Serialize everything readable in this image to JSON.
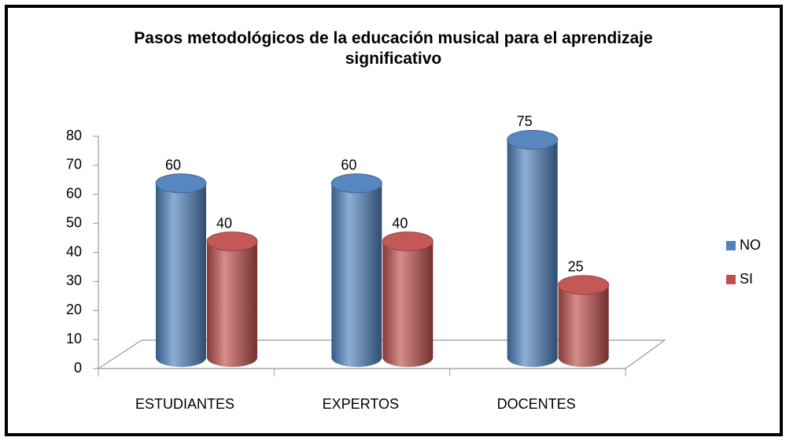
{
  "chart_data": {
    "type": "bar3d",
    "title": "Pasos metodológicos de la educación musical para el aprendizaje significativo",
    "categories": [
      "ESTUDIANTES",
      "EXPERTOS",
      "DOCENTES"
    ],
    "series": [
      {
        "name": "NO",
        "color": "#4f81bd",
        "values": [
          60,
          60,
          75
        ]
      },
      {
        "name": "SI",
        "color": "#c0504d",
        "values": [
          40,
          40,
          25
        ]
      }
    ],
    "ylim": [
      0,
      80
    ],
    "yticks": [
      0,
      10,
      20,
      30,
      40,
      50,
      60,
      70,
      80
    ],
    "legend": "right"
  }
}
